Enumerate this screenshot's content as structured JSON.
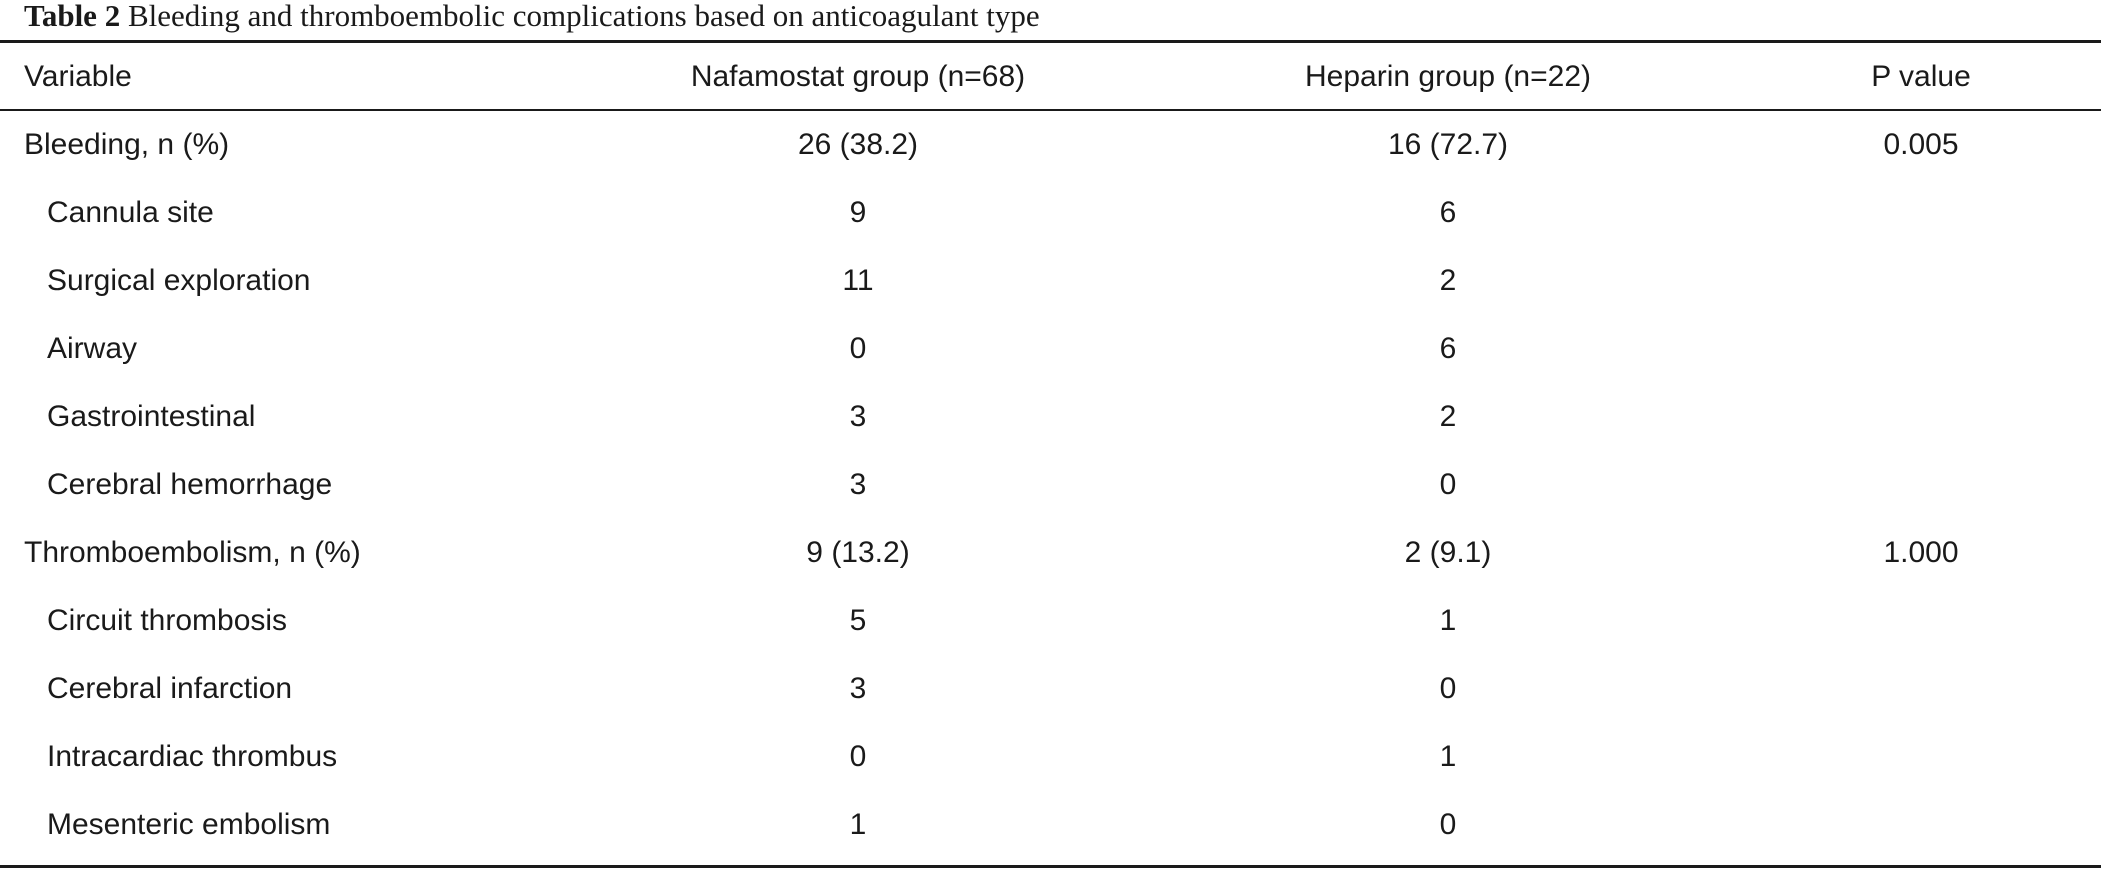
{
  "caption": {
    "label": "Table 2",
    "text": "Bleeding and thromboembolic complications based on anticoagulant type"
  },
  "header": {
    "variable": "Variable",
    "nafamostat": "Nafamostat group (n=68)",
    "heparin": "Heparin group (n=22)",
    "p_value": "P value"
  },
  "rows": [
    {
      "variable": "Bleeding, n (%)",
      "nafamostat": "26 (38.2)",
      "heparin": "16 (72.7)",
      "p_value": "0.005"
    },
    {
      "variable": "Cannula site",
      "nafamostat": "9",
      "heparin": "6",
      "p_value": ""
    },
    {
      "variable": "Surgical exploration",
      "nafamostat": "11",
      "heparin": "2",
      "p_value": ""
    },
    {
      "variable": "Airway",
      "nafamostat": "0",
      "heparin": "6",
      "p_value": ""
    },
    {
      "variable": "Gastrointestinal",
      "nafamostat": "3",
      "heparin": "2",
      "p_value": ""
    },
    {
      "variable": "Cerebral hemorrhage",
      "nafamostat": "3",
      "heparin": "0",
      "p_value": ""
    },
    {
      "variable": "Thromboembolism, n (%)",
      "nafamostat": "9 (13.2)",
      "heparin": "2 (9.1)",
      "p_value": "1.000"
    },
    {
      "variable": "Circuit thrombosis",
      "nafamostat": "5",
      "heparin": "1",
      "p_value": ""
    },
    {
      "variable": "Cerebral infarction",
      "nafamostat": "3",
      "heparin": "0",
      "p_value": ""
    },
    {
      "variable": "Intracardiac thrombus",
      "nafamostat": "0",
      "heparin": "1",
      "p_value": ""
    },
    {
      "variable": "Mesenteric embolism",
      "nafamostat": "1",
      "heparin": "0",
      "p_value": ""
    }
  ]
}
